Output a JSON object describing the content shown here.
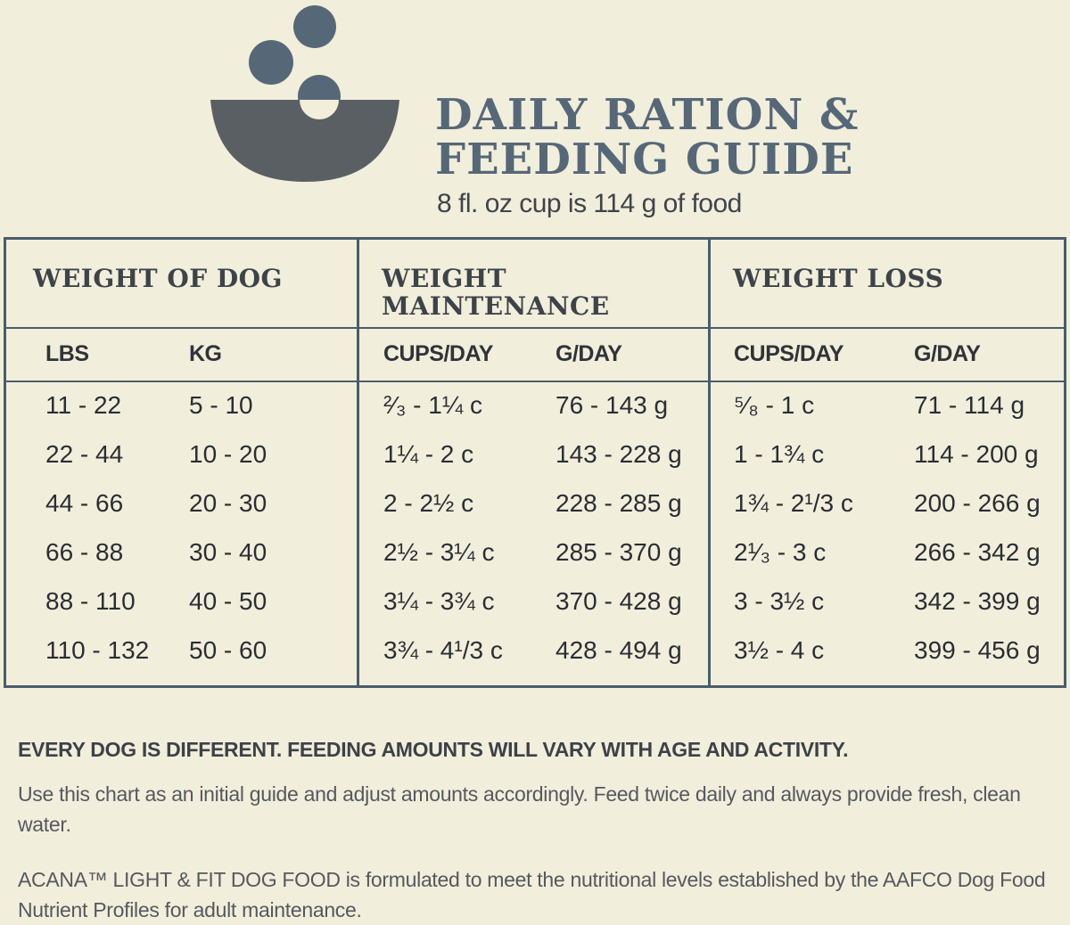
{
  "header": {
    "title_line1": "DAILY RATION &",
    "title_line2": "FEEDING GUIDE",
    "subtitle": "8 fl. oz cup is 114 g of food"
  },
  "colors": {
    "title": "#566878",
    "bowl": "#5a5f63",
    "ball": "#566878",
    "background": "#f2eedc"
  },
  "table": {
    "groups": [
      "WEIGHT OF DOG",
      "WEIGHT MAINTENANCE",
      "WEIGHT LOSS"
    ],
    "columns": [
      "LBS",
      "KG",
      "CUPS/DAY",
      "G/DAY",
      "CUPS/DAY",
      "G/DAY"
    ],
    "rows": [
      [
        "11 - 22",
        "5 - 10",
        "²⁄₃ - 1¼ c",
        "76 - 143 g",
        "⁵⁄₈ - 1 c",
        "71 - 114 g"
      ],
      [
        "22 - 44",
        "10 - 20",
        "1¼ - 2 c",
        "143 - 228 g",
        "1 - 1¾ c",
        "114 - 200 g"
      ],
      [
        "44 - 66",
        "20 - 30",
        "2 - 2½ c",
        "228 - 285 g",
        "1¾ - 2¹/3 c",
        "200 - 266 g"
      ],
      [
        "66 - 88",
        "30 - 40",
        "2½ - 3¼ c",
        "285 - 370 g",
        "2¹⁄₃ - 3 c",
        "266 - 342 g"
      ],
      [
        "88 - 110",
        "40 - 50",
        "3¼ - 3¾ c",
        "370 - 428 g",
        "3 - 3½ c",
        "342 - 399 g"
      ],
      [
        "110 - 132",
        "50 - 60",
        "3¾ - 4¹/3 c",
        "428 - 494 g",
        "3½ - 4 c",
        "399 - 456 g"
      ]
    ]
  },
  "notes": {
    "headline": "EVERY DOG IS DIFFERENT. FEEDING AMOUNTS WILL VARY WITH AGE AND ACTIVITY.",
    "guide": "Use this chart as an initial guide and adjust amounts accordingly. Feed twice daily and always provide fresh, clean water.",
    "disclaimer": "ACANA™ LIGHT & FIT DOG FOOD is formulated to meet the nutritional levels established by the AAFCO Dog Food Nutrient Profiles for adult maintenance."
  }
}
